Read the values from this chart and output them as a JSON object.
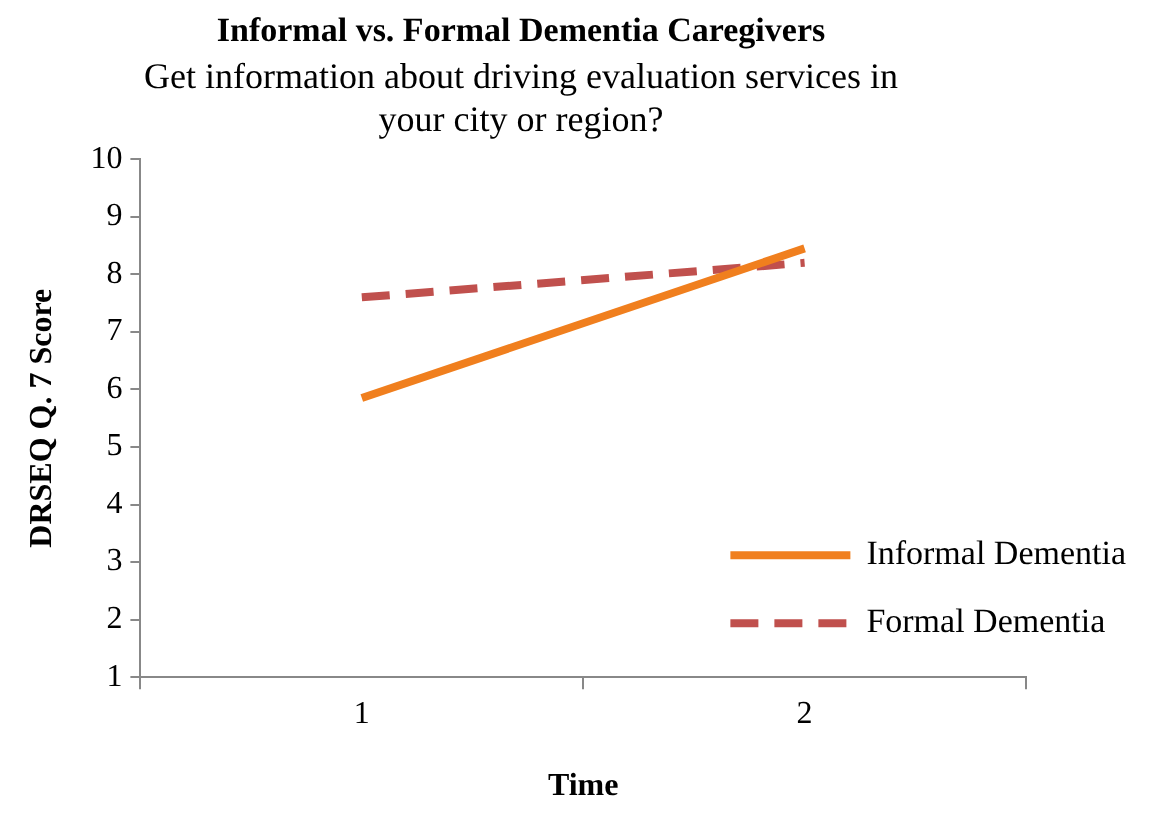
{
  "chart_data": {
    "type": "line",
    "title": "Informal vs. Formal Dementia Caregivers",
    "subtitle": "Get information about driving evaluation services in your city or region?",
    "xlabel": "Time",
    "ylabel": "DRSEQ Q. 7 Score",
    "categories": [
      "1",
      "2"
    ],
    "series": [
      {
        "name": "Informal Dementia",
        "color": "#f07f1e",
        "values": [
          5.85,
          8.45
        ],
        "line_style": "solid"
      },
      {
        "name": "Formal Dementia",
        "color": "#c0504d",
        "values": [
          7.6,
          8.2
        ],
        "line_style": "dashed"
      }
    ],
    "ylim": [
      1,
      10
    ],
    "yticks": [
      1,
      2,
      3,
      4,
      5,
      6,
      7,
      8,
      9,
      10
    ],
    "grid": false,
    "legend": "bottom right",
    "marker": "none"
  }
}
